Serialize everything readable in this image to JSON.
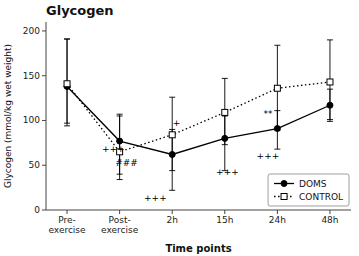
{
  "chart_data": {
    "type": "line",
    "title": "Glycogen",
    "x_label": "Time points",
    "y_label": "Glycogen (mmol/kg wet weight)",
    "categories": [
      "Pre-\nexercise",
      "Post-\nexercise",
      "2h",
      "15h",
      "24h",
      "48h"
    ],
    "series": [
      {
        "name": "DOMS",
        "color": "#000000",
        "marker": "circle",
        "line_style": "solid",
        "values": [
          138,
          77,
          62,
          80,
          91,
          117
        ],
        "error_low": [
          44,
          37,
          40,
          36,
          23,
          18
        ],
        "error_high": [
          53,
          28,
          28,
          25,
          20,
          18
        ]
      },
      {
        "name": "CONTROL",
        "color": "#000000",
        "marker": "square-open",
        "line_style": "dotted",
        "values": [
          141,
          65,
          84,
          109,
          136,
          143
        ],
        "error_low": [
          44,
          31,
          40,
          36,
          47,
          42
        ],
        "error_high": [
          50,
          42,
          42,
          38,
          48,
          47
        ]
      }
    ],
    "annotations": [
      {
        "text": "+++",
        "x": 0.88,
        "y": 68
      },
      {
        "text": "###",
        "x": 1.13,
        "y": 53
      },
      {
        "text": "+++",
        "x": 1.68,
        "y": 13
      },
      {
        "text": "+",
        "x": 2.08,
        "y": 97
      },
      {
        "text": "+++",
        "x": 3.05,
        "y": 42
      },
      {
        "text": "**",
        "x": 3.82,
        "y": 107
      },
      {
        "text": "+++",
        "x": 3.82,
        "y": 60
      }
    ],
    "ylim": [
      0,
      210
    ],
    "yticks": [
      0,
      50,
      100,
      150,
      200
    ],
    "grid": false,
    "legend": "lower-right"
  }
}
